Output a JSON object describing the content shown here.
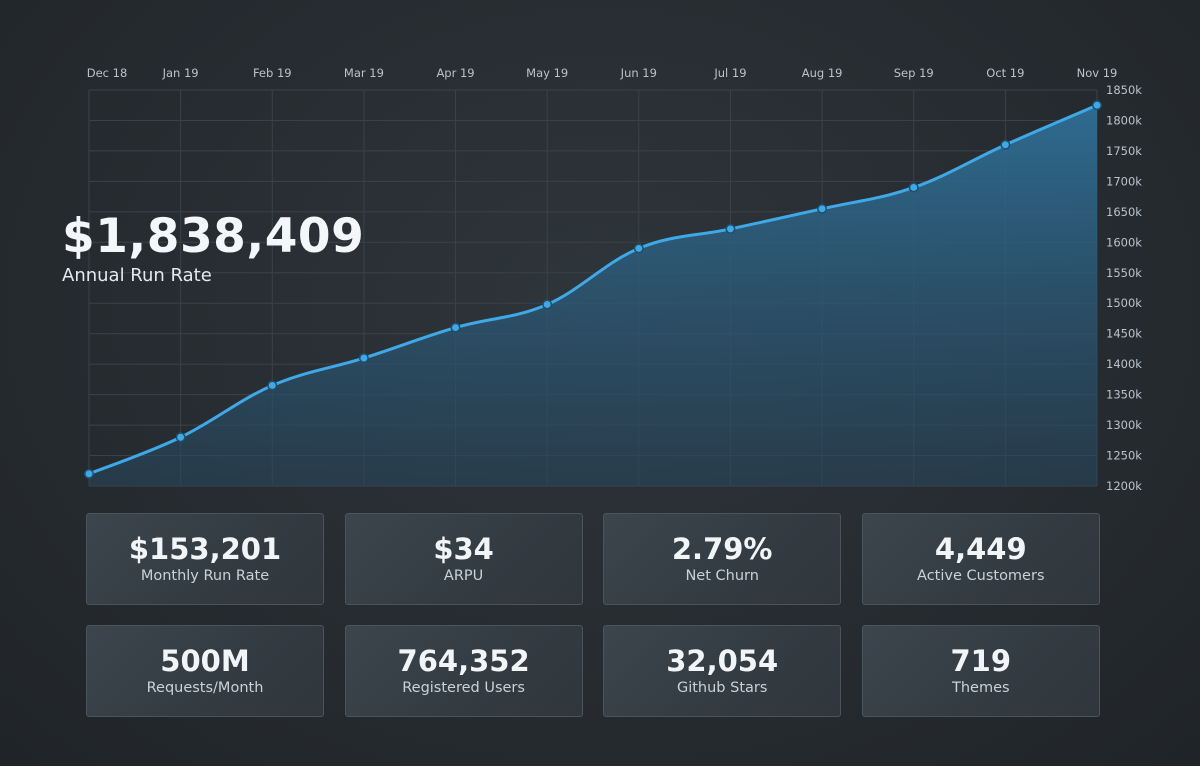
{
  "headline": {
    "value": "$1,838,409",
    "label": "Annual Run Rate"
  },
  "colors": {
    "line": "#3fa9e8",
    "area_top": "#2f6e95",
    "area_bottom": "#27475e",
    "grid": "#3a4249"
  },
  "chart_data": {
    "type": "area",
    "x": [
      "Dec 18",
      "Jan 19",
      "Feb 19",
      "Mar 19",
      "Apr 19",
      "May 19",
      "Jun 19",
      "Jul 19",
      "Aug 19",
      "Sep 19",
      "Oct 19",
      "Nov 19"
    ],
    "series": [
      {
        "values": [
          1220,
          1280,
          1365,
          1410,
          1460,
          1498,
          1590,
          1622,
          1655,
          1690,
          1760,
          1825
        ]
      }
    ],
    "ylim": [
      1200,
      1850
    ],
    "yticks": [
      1200,
      1250,
      1300,
      1350,
      1400,
      1450,
      1500,
      1550,
      1600,
      1650,
      1700,
      1750,
      1800,
      1850
    ],
    "ytick_labels": [
      "1200k",
      "1250k",
      "1300k",
      "1350k",
      "1400k",
      "1450k",
      "1500k",
      "1550k",
      "1600k",
      "1650k",
      "1700k",
      "1750k",
      "1800k",
      "1850k"
    ],
    "grid": true,
    "title": "",
    "xlabel": "",
    "ylabel": ""
  },
  "stats": [
    {
      "value": "$153,201",
      "label": "Monthly Run Rate"
    },
    {
      "value": "$34",
      "label": "ARPU"
    },
    {
      "value": "2.79%",
      "label": "Net Churn"
    },
    {
      "value": "4,449",
      "label": "Active Customers"
    },
    {
      "value": "500M",
      "label": "Requests/Month"
    },
    {
      "value": "764,352",
      "label": "Registered Users"
    },
    {
      "value": "32,054",
      "label": "Github Stars"
    },
    {
      "value": "719",
      "label": "Themes"
    }
  ]
}
